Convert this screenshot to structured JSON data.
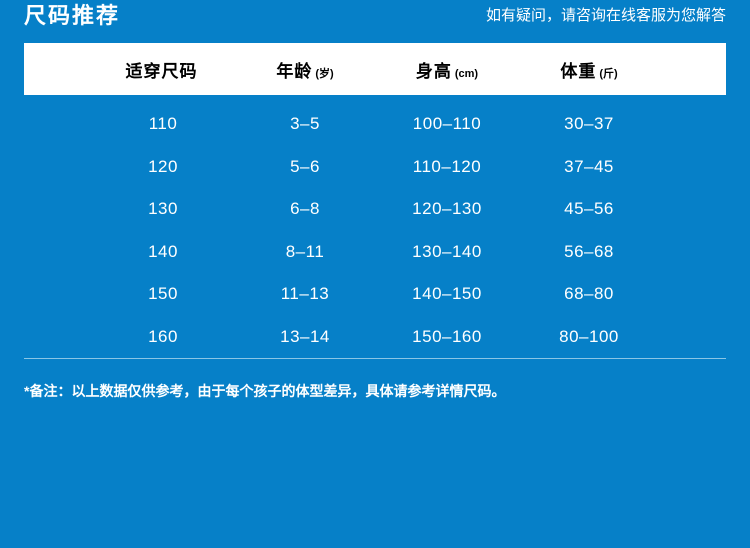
{
  "header": {
    "title": "尺码推荐",
    "support_text": "如有疑问，请咨询在线客服为您解答"
  },
  "chart_data": {
    "type": "table",
    "title": "尺码推荐",
    "columns": [
      {
        "label": "适穿尺码",
        "unit": ""
      },
      {
        "label": "年龄",
        "unit": "(岁)"
      },
      {
        "label": "身高",
        "unit": "(cm)"
      },
      {
        "label": "体重",
        "unit": "(斤)"
      }
    ],
    "rows": [
      [
        "110",
        "3–5",
        "100–110",
        "30–37"
      ],
      [
        "120",
        "5–6",
        "110–120",
        "37–45"
      ],
      [
        "130",
        "6–8",
        "120–130",
        "45–56"
      ],
      [
        "140",
        "8–11",
        "130–140",
        "56–68"
      ],
      [
        "150",
        "11–13",
        "140–150",
        "68–80"
      ],
      [
        "160",
        "13–14",
        "150–160",
        "80–100"
      ]
    ]
  },
  "footnote": "*备注：以上数据仅供参考，由于每个孩子的体型差异，具体请参考详情尺码。",
  "colors": {
    "background": "#0680C8",
    "header_bg": "#FFFFFF",
    "header_text": "#000000",
    "data_text": "#FFFFFF",
    "divider": "#8AC6E6"
  }
}
